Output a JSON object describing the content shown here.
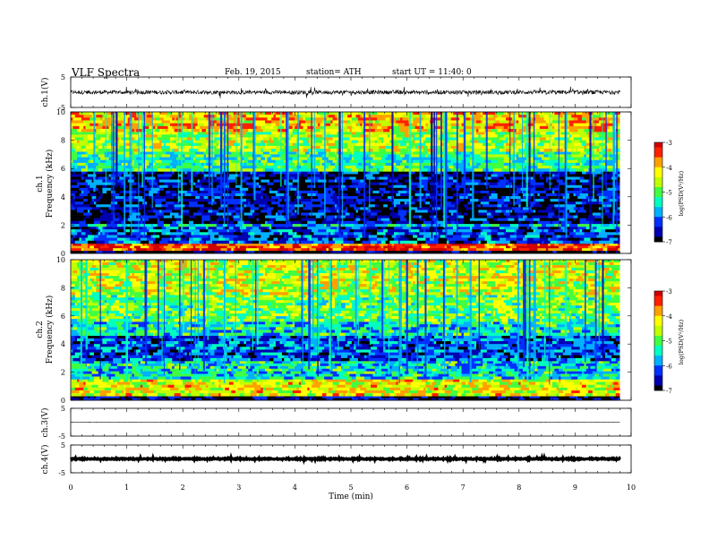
{
  "header": {
    "title": "VLF  Spectra",
    "date": "Feb. 19,  2015",
    "station": "station= ATH",
    "start": "start  UT  =   11:40: 0"
  },
  "colors": {
    "colormap": [
      "#000000",
      "#0000b0",
      "#0030ff",
      "#00b0ff",
      "#00ffc0",
      "#40ff40",
      "#c0ff00",
      "#ffff00",
      "#ffa000",
      "#ff2000",
      "#d00000",
      "#ffffff"
    ]
  },
  "chart_data": [
    {
      "type": "line",
      "panel": "ch1-waveform",
      "ylabel": "ch.1(V)",
      "yticks": [
        "5",
        "-5"
      ],
      "ylim": [
        -5,
        5
      ],
      "x_range_min": [
        0,
        9.8
      ],
      "description_values": {
        "baseline": 0,
        "envelope": 1.3
      }
    },
    {
      "type": "heatmap",
      "panel": "ch1-spectrogram",
      "ylabel": "ch.1\nFrequency (kHz)",
      "ylabel_line1": "ch.1",
      "ylabel_line2": "Frequency  (kHz)",
      "yticks": [
        "0",
        "2",
        "4",
        "6",
        "8",
        "10"
      ],
      "ylim": [
        0,
        10
      ],
      "colorbar": {
        "label": "log(PSD(V²/Hz)",
        "ticks": [
          "-3",
          "-4",
          "-5",
          "-6",
          "-7"
        ],
        "range": [
          -7,
          -3
        ]
      },
      "bands": [
        {
          "from": 0.0,
          "to": 0.2,
          "level": -6.9
        },
        {
          "from": 0.2,
          "to": 0.7,
          "level": -3.4
        },
        {
          "from": 0.7,
          "to": 1.9,
          "level": -6.2
        },
        {
          "from": 1.9,
          "to": 2.1,
          "level": -5.6
        },
        {
          "from": 2.1,
          "to": 5.8,
          "level": -6.6
        },
        {
          "from": 5.8,
          "to": 7.2,
          "level": -5.2
        },
        {
          "from": 7.2,
          "to": 8.6,
          "level": -4.6
        },
        {
          "from": 8.6,
          "to": 10.0,
          "level": -4.1
        }
      ]
    },
    {
      "type": "heatmap",
      "panel": "ch2-spectrogram",
      "ylabel_line1": "ch.2",
      "ylabel_line2": "Frequency  (kHz)",
      "yticks": [
        "0",
        "2",
        "4",
        "6",
        "8",
        "10"
      ],
      "ylim": [
        0,
        10
      ],
      "colorbar": {
        "label": "log(PSD(V²/Hz)",
        "ticks": [
          "-3",
          "-4",
          "-5",
          "-6",
          "-7"
        ],
        "range": [
          -7,
          -3
        ]
      },
      "bands": [
        {
          "from": 0.0,
          "to": 0.3,
          "level": -6.8
        },
        {
          "from": 0.3,
          "to": 1.5,
          "level": -4.3
        },
        {
          "from": 1.5,
          "to": 2.8,
          "level": -5.5
        },
        {
          "from": 2.8,
          "to": 4.6,
          "level": -6.2
        },
        {
          "from": 4.6,
          "to": 5.6,
          "level": -5.4
        },
        {
          "from": 5.6,
          "to": 7.5,
          "level": -4.9
        },
        {
          "from": 7.5,
          "to": 10.0,
          "level": -4.5
        }
      ]
    },
    {
      "type": "line",
      "panel": "ch3-waveform",
      "ylabel": "ch.3(V)",
      "yticks": [
        "5",
        "-5"
      ],
      "ylim": [
        -5,
        5
      ],
      "description_values": {
        "baseline": 0,
        "envelope": 0.1
      }
    },
    {
      "type": "line",
      "panel": "ch4-waveform",
      "ylabel": "ch.4(V)",
      "yticks": [
        "5",
        "-5"
      ],
      "ylim": [
        -5,
        5
      ],
      "description_values": {
        "baseline": 0,
        "envelope": 0.35
      }
    }
  ],
  "xaxis": {
    "label": "Time  (min)",
    "ticks": [
      "0",
      "1",
      "2",
      "3",
      "4",
      "5",
      "6",
      "7",
      "8",
      "9",
      "10"
    ],
    "xlim": [
      0,
      10
    ],
    "data_end": 9.8
  }
}
